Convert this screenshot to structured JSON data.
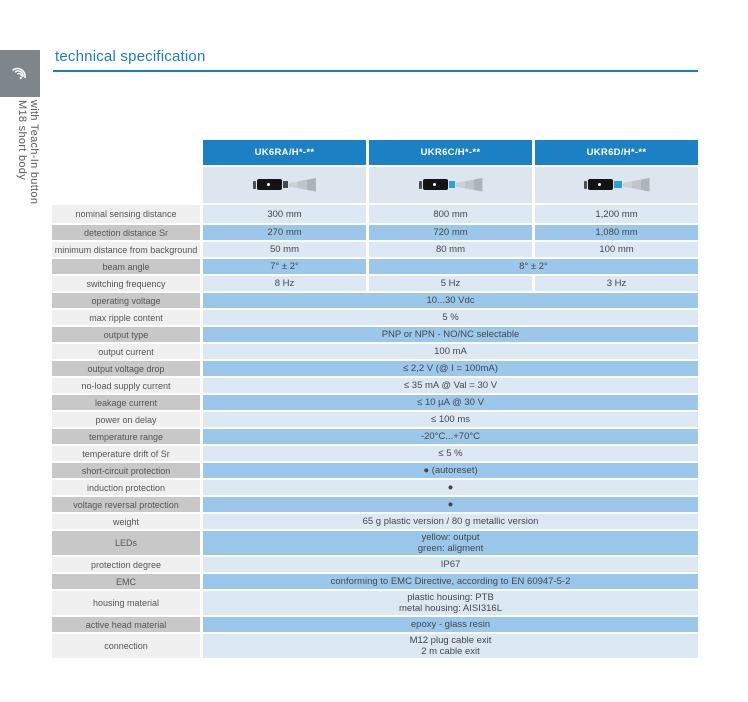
{
  "page": {
    "title": "technical specification",
    "sidebar_label_line1": "M18 short body",
    "sidebar_label_line2": "with Teach-In button",
    "logo_icon": "ultrasonic-wave-icon"
  },
  "colors": {
    "accent_blue": "#1b80c4",
    "row_light_blue": "#dce8f4",
    "row_medium_blue": "#9bc8ea",
    "label_light_gray": "#f0f0f0",
    "label_dark_gray": "#c8c8c8",
    "image_row_bg": "#dde5ef",
    "logo_gray": "#7e868c"
  },
  "table": {
    "columns": [
      "UK6RA/H*-**",
      "UKR6C/H*-**",
      "UKR6D/H*-**"
    ],
    "rows": [
      {
        "label": "nominal sensing distance",
        "cells": [
          {
            "text": "300 mm",
            "span": 1
          },
          {
            "text": "800 mm",
            "span": 1
          },
          {
            "text": "1,200 mm",
            "span": 1
          }
        ]
      },
      {
        "label": "detection distance Sr",
        "cells": [
          {
            "text": "270 mm",
            "span": 1
          },
          {
            "text": "720 mm",
            "span": 1
          },
          {
            "text": "1,080 mm",
            "span": 1
          }
        ]
      },
      {
        "label": "minimum distance from background",
        "cells": [
          {
            "text": "50 mm",
            "span": 1
          },
          {
            "text": "80 mm",
            "span": 1
          },
          {
            "text": "100 mm",
            "span": 1
          }
        ]
      },
      {
        "label": "beam angle",
        "cells": [
          {
            "text": "7° ± 2°",
            "span": 1
          },
          {
            "text": "8° ± 2°",
            "span": 2
          }
        ]
      },
      {
        "label": "switching frequency",
        "cells": [
          {
            "text": "8 Hz",
            "span": 1
          },
          {
            "text": "5 Hz",
            "span": 1
          },
          {
            "text": "3 Hz",
            "span": 1
          }
        ]
      },
      {
        "label": "operating voltage",
        "cells": [
          {
            "text": "10...30 Vdc",
            "span": 3
          }
        ]
      },
      {
        "label": "max ripple content",
        "cells": [
          {
            "text": "5 %",
            "span": 3
          }
        ]
      },
      {
        "label": "output type",
        "cells": [
          {
            "text": "PNP or NPN - NO/NC selectable",
            "span": 3
          }
        ]
      },
      {
        "label": "output current",
        "cells": [
          {
            "text": "100 mA",
            "span": 3
          }
        ]
      },
      {
        "label": "output voltage drop",
        "cells": [
          {
            "text": "≤ 2,2 V (@ I = 100mA)",
            "span": 3
          }
        ]
      },
      {
        "label": "no-load supply current",
        "cells": [
          {
            "text": "≤ 35 mA @ Val = 30 V",
            "span": 3
          }
        ]
      },
      {
        "label": "leakage current",
        "cells": [
          {
            "text": "≤ 10 µA @ 30 V",
            "span": 3
          }
        ]
      },
      {
        "label": "power on delay",
        "cells": [
          {
            "text": "≤ 100 ms",
            "span": 3
          }
        ]
      },
      {
        "label": "temperature range",
        "cells": [
          {
            "text": "-20°C...+70°C",
            "span": 3
          }
        ]
      },
      {
        "label": "temperature drift of Sr",
        "cells": [
          {
            "text": "≤ 5 %",
            "span": 3
          }
        ]
      },
      {
        "label": "short-circuit protection",
        "cells": [
          {
            "text": "● (autoreset)",
            "span": 3
          }
        ]
      },
      {
        "label": "induction protection",
        "cells": [
          {
            "text": "●",
            "span": 3
          }
        ]
      },
      {
        "label": "voltage reversal protection",
        "cells": [
          {
            "text": "●",
            "span": 3
          }
        ]
      },
      {
        "label": "weight",
        "cells": [
          {
            "text": "65 g plastic version / 80 g metallic version",
            "span": 3
          }
        ]
      },
      {
        "label": "LEDs",
        "cells": [
          {
            "text": "yellow: output\ngreen: aligment",
            "span": 3
          }
        ]
      },
      {
        "label": "protection degree",
        "cells": [
          {
            "text": "IP67",
            "span": 3
          }
        ]
      },
      {
        "label": "EMC",
        "cells": [
          {
            "text": "conforming to EMC Directive, according to EN 60947-5-2",
            "span": 3
          }
        ]
      },
      {
        "label": "housing material",
        "cells": [
          {
            "text": "plastic housing: PTB\nmetal housing: AISI316L",
            "span": 3
          }
        ]
      },
      {
        "label": "active head material",
        "cells": [
          {
            "text": "epoxy - glass resin",
            "span": 3
          }
        ]
      },
      {
        "label": "connection",
        "cells": [
          {
            "text": "M12 plug cable exit\n2 m cable exit",
            "span": 3
          }
        ]
      }
    ]
  }
}
